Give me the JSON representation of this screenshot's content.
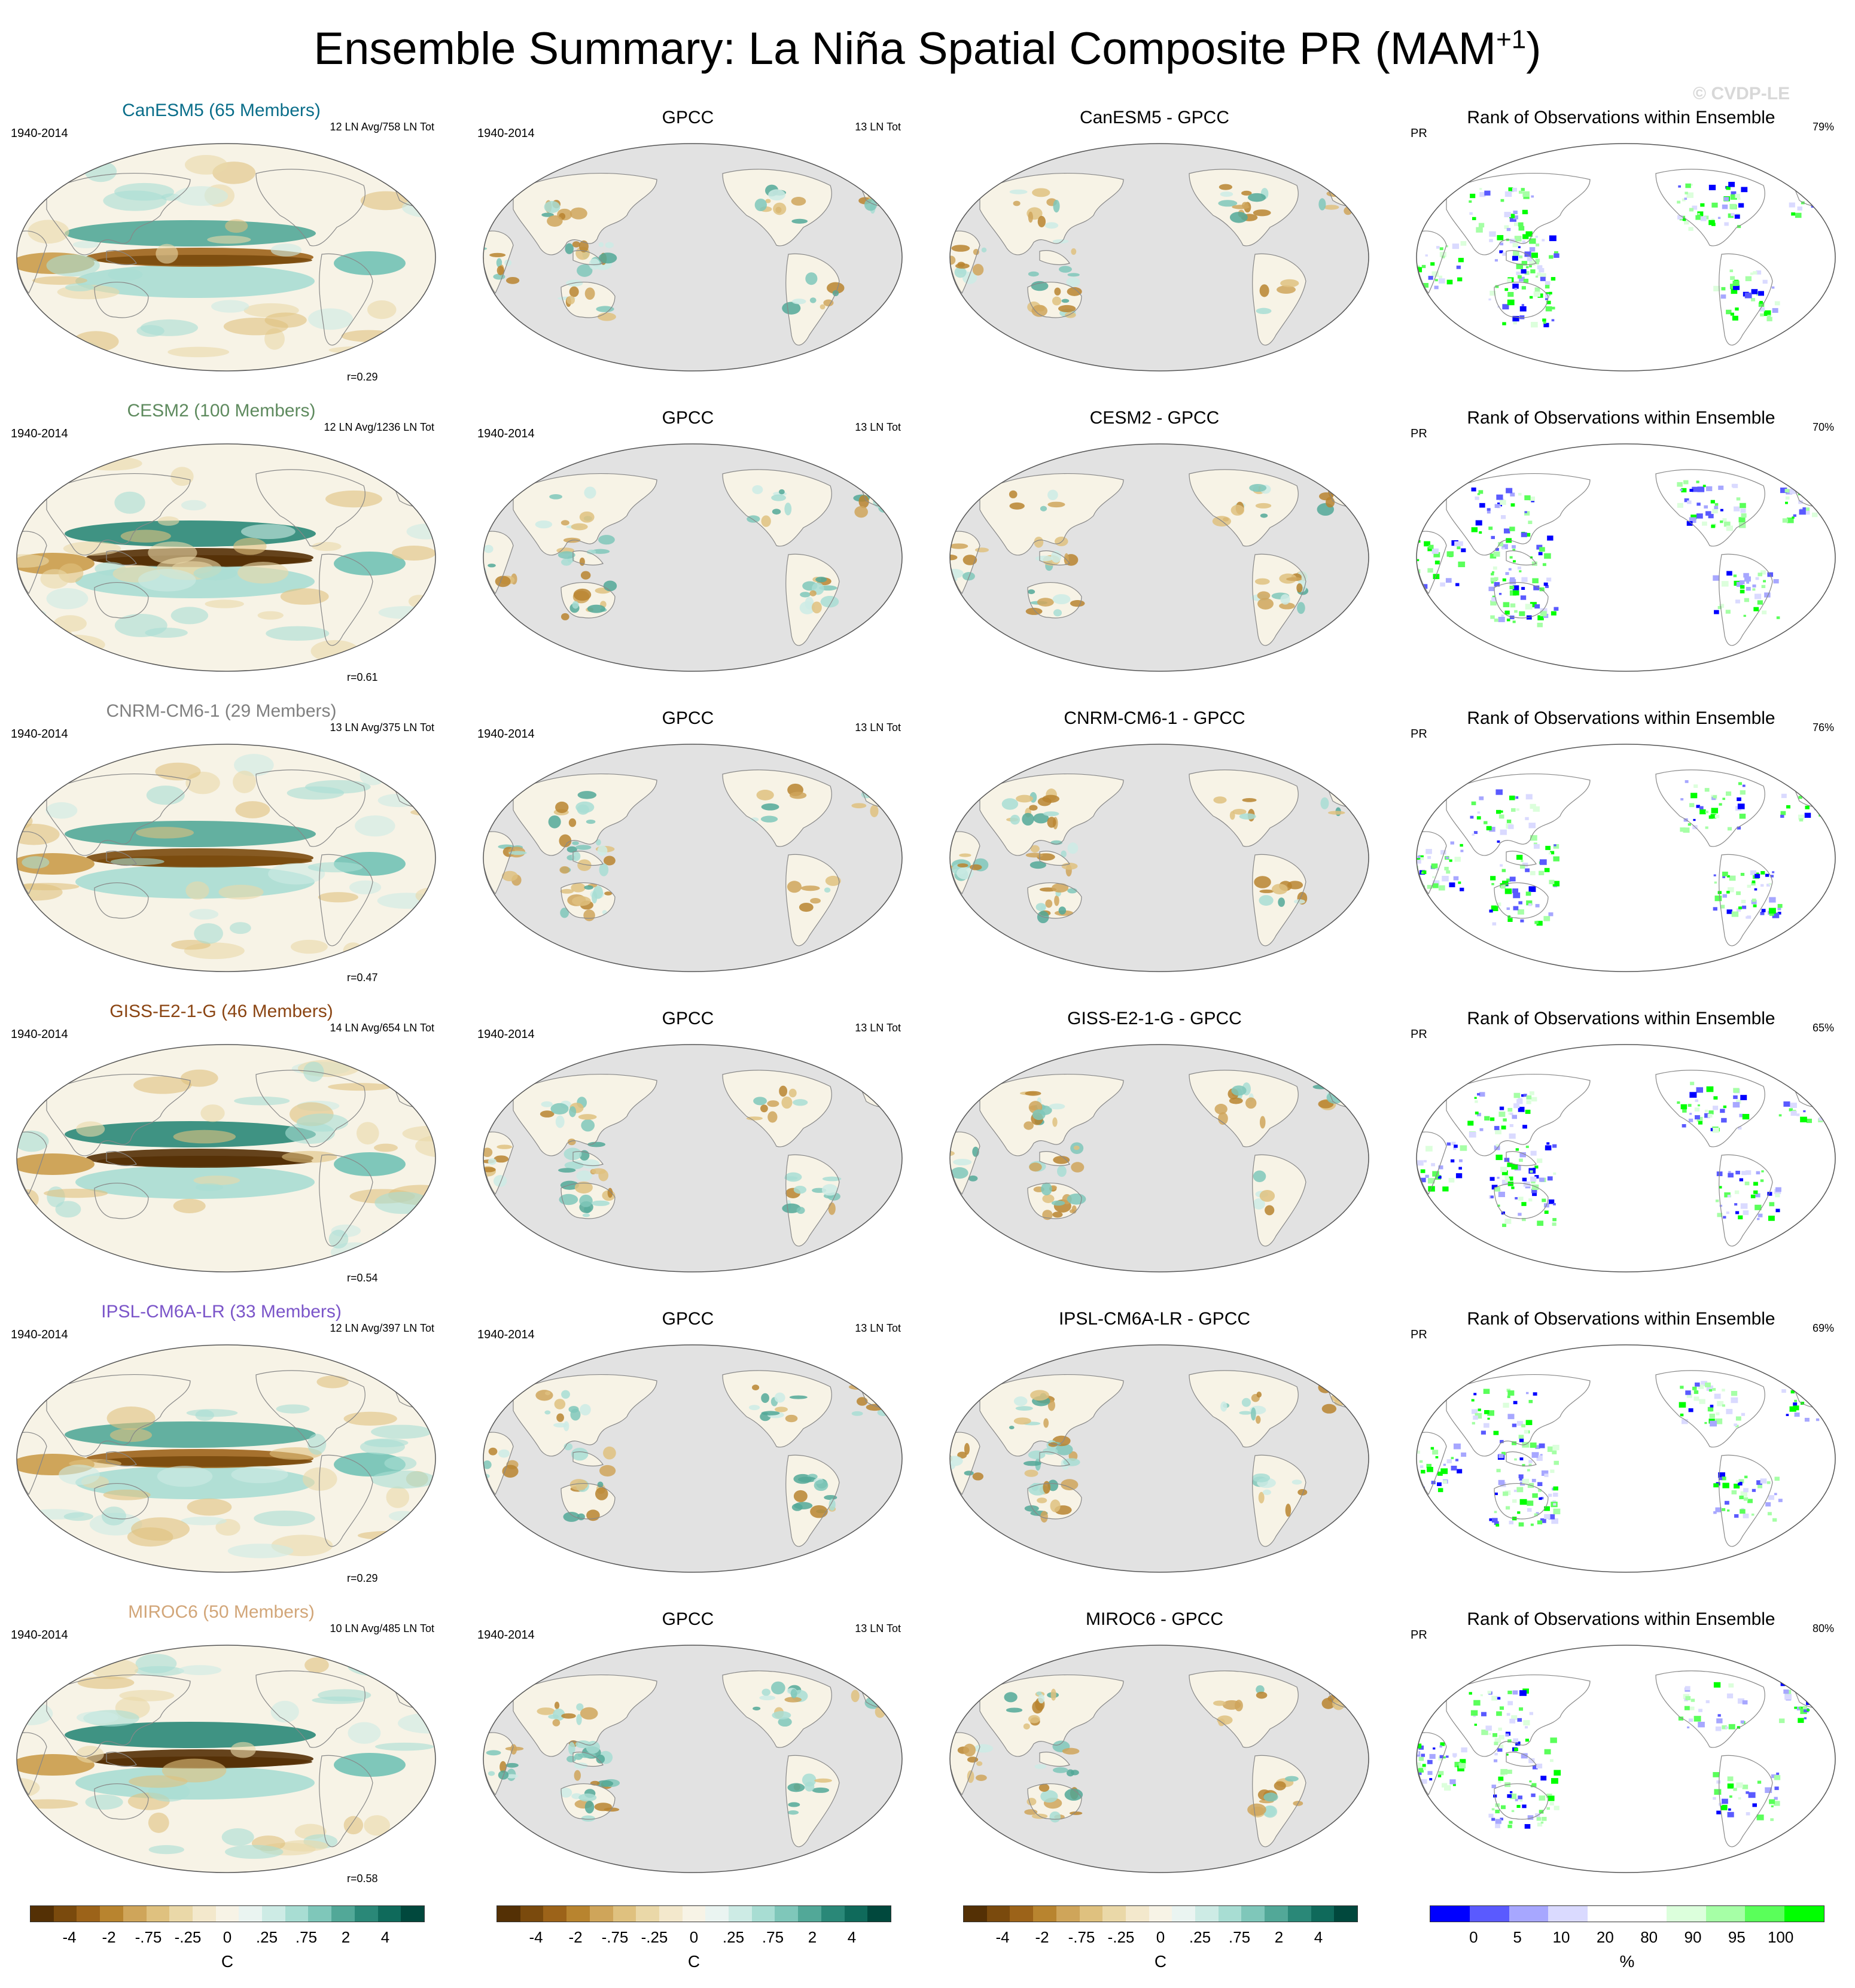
{
  "figure": {
    "title": "Ensemble Summary: La Niña Spatial Composite PR (MAM",
    "title_superscript": "+1",
    "title_close": ")",
    "watermark": "© CVDP-LE"
  },
  "colors": {
    "brown_green_scale": [
      "#543005",
      "#7a4a0d",
      "#9c6319",
      "#b8842f",
      "#cfa55a",
      "#dfc17f",
      "#ead8a8",
      "#f3e8cc",
      "#f7f3e6",
      "#eaf4f1",
      "#cdebe5",
      "#a8ddd3",
      "#7fc7ba",
      "#52a898",
      "#2a8878",
      "#0f6a5b",
      "#01483d"
    ],
    "rank_scale": [
      "#0000ff",
      "#5a5aff",
      "#a7a7ff",
      "#dadaff",
      "#ffffff",
      "#ffffff",
      "#dcffdc",
      "#a6ffa6",
      "#5aff5a",
      "#00ff00"
    ],
    "ocean_gray": "#e2e2e2",
    "land_outline": "#888888"
  },
  "rows": [
    {
      "model": {
        "title": "CanESM5 (65 Members)",
        "title_color": "#0a6e8a",
        "period": "1940-2014",
        "events": "12 LN Avg/758 LN Tot",
        "corr": "r=0.29"
      },
      "obs": {
        "title": "GPCC",
        "period": "1940-2014",
        "events": "13 LN Tot"
      },
      "diff": {
        "title": "CanESM5 - GPCC"
      },
      "rank": {
        "title": "Rank of Observations within Ensemble",
        "var": "PR",
        "pct": "79%"
      }
    },
    {
      "model": {
        "title": "CESM2 (100 Members)",
        "title_color": "#5e8a5e",
        "period": "1940-2014",
        "events": "12 LN Avg/1236 LN Tot",
        "corr": "r=0.61"
      },
      "obs": {
        "title": "GPCC",
        "period": "1940-2014",
        "events": "13 LN Tot"
      },
      "diff": {
        "title": "CESM2 - GPCC"
      },
      "rank": {
        "title": "Rank of Observations within Ensemble",
        "var": "PR",
        "pct": "70%"
      }
    },
    {
      "model": {
        "title": "CNRM-CM6-1 (29 Members)",
        "title_color": "#808080",
        "period": "1940-2014",
        "events": "13 LN Avg/375 LN Tot",
        "corr": "r=0.47"
      },
      "obs": {
        "title": "GPCC",
        "period": "1940-2014",
        "events": "13 LN Tot"
      },
      "diff": {
        "title": "CNRM-CM6-1 - GPCC"
      },
      "rank": {
        "title": "Rank of Observations within Ensemble",
        "var": "PR",
        "pct": "76%"
      }
    },
    {
      "model": {
        "title": "GISS-E2-1-G (46 Members)",
        "title_color": "#8b4513",
        "period": "1940-2014",
        "events": "14 LN Avg/654 LN Tot",
        "corr": "r=0.54"
      },
      "obs": {
        "title": "GPCC",
        "period": "1940-2014",
        "events": "13 LN Tot"
      },
      "diff": {
        "title": "GISS-E2-1-G - GPCC"
      },
      "rank": {
        "title": "Rank of Observations within Ensemble",
        "var": "PR",
        "pct": "65%"
      }
    },
    {
      "model": {
        "title": "IPSL-CM6A-LR (33 Members)",
        "title_color": "#7b55c9",
        "period": "1940-2014",
        "events": "12 LN Avg/397 LN Tot",
        "corr": "r=0.29"
      },
      "obs": {
        "title": "GPCC",
        "period": "1940-2014",
        "events": "13 LN Tot"
      },
      "diff": {
        "title": "IPSL-CM6A-LR - GPCC"
      },
      "rank": {
        "title": "Rank of Observations within Ensemble",
        "var": "PR",
        "pct": "69%"
      }
    },
    {
      "model": {
        "title": "MIROC6 (50 Members)",
        "title_color": "#d2a679",
        "period": "1940-2014",
        "events": "10 LN Avg/485 LN Tot",
        "corr": "r=0.58"
      },
      "obs": {
        "title": "GPCC",
        "period": "1940-2014",
        "events": "13 LN Tot"
      },
      "diff": {
        "title": "MIROC6 - GPCC"
      },
      "rank": {
        "title": "Rank of Observations within Ensemble",
        "var": "PR",
        "pct": "80%"
      }
    }
  ],
  "colorbars": [
    {
      "unit": "C",
      "ticks": [
        "-4",
        "-2",
        "-.75",
        "-.25",
        "0",
        ".25",
        ".75",
        "2",
        "4"
      ]
    },
    {
      "unit": "C",
      "ticks": [
        "-4",
        "-2",
        "-.75",
        "-.25",
        "0",
        ".25",
        ".75",
        "2",
        "4"
      ]
    },
    {
      "unit": "C",
      "ticks": [
        "-4",
        "-2",
        "-.75",
        "-.25",
        "0",
        ".25",
        ".75",
        "2",
        "4"
      ]
    },
    {
      "unit": "%",
      "ticks": [
        "0",
        "5",
        "10",
        "20",
        "80",
        "90",
        "95",
        "100"
      ]
    }
  ]
}
